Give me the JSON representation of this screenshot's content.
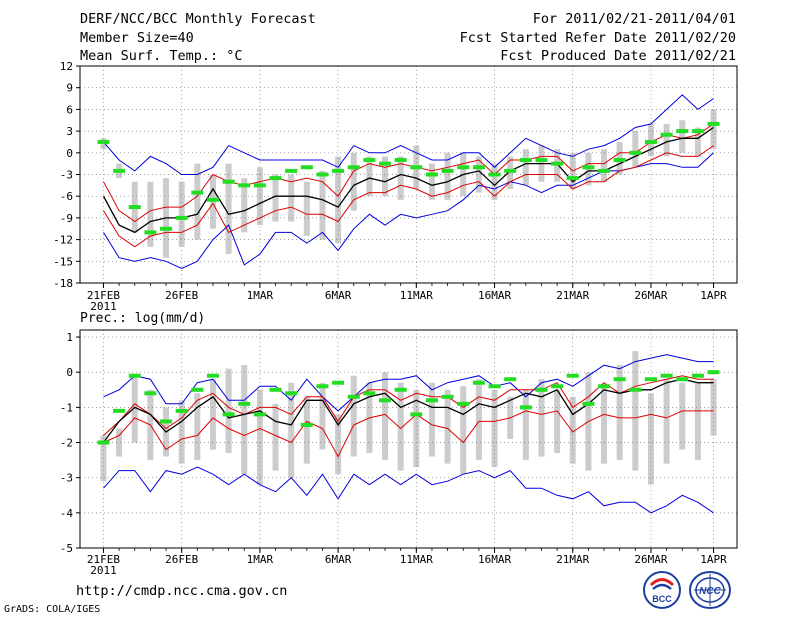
{
  "header": {
    "title": "DERF/NCC/BCC Monthly Forecast",
    "member_size": "Member Size=40",
    "variable": "Mean Surf. Temp.: °C",
    "period": "For 2011/02/21-2011/04/01",
    "fcst_started": "Fcst Started Refer Date 2011/02/20",
    "fcst_produced": "Fcst Produced Date 2011/02/21"
  },
  "footer": {
    "url": "http://cmdp.ncc.cma.gov.cn",
    "credit": "GrADS: COLA/IGES"
  },
  "logos": {
    "bcc": "BCC",
    "ncc": "NCC"
  },
  "colors": {
    "mean": "#000000",
    "spread": "#dd0000",
    "extreme": "#0000dd",
    "observed": "#22dd22",
    "box": "#cccccc",
    "grid": "#808080"
  },
  "x_labels": [
    "21FEB",
    "26FEB",
    "1MAR",
    "6MAR",
    "11MAR",
    "16MAR",
    "21MAR",
    "26MAR",
    "1APR"
  ],
  "x_label_year": "2011",
  "chart_data": [
    {
      "type": "line",
      "title": "Mean Surf. Temp.: °C",
      "xlabel": "",
      "ylabel": "",
      "ylim": [
        -18,
        12
      ],
      "yticks": [
        "12",
        "9",
        "6",
        "3",
        "0",
        "-3",
        "-6",
        "-9",
        "-12",
        "-15",
        "-18"
      ],
      "days": 40,
      "series": [
        {
          "name": "max",
          "values": [
            -11,
            -14.5,
            -15,
            -14.5,
            -15,
            -16,
            -15,
            -12,
            -10,
            -15.5,
            -14,
            -11,
            -11,
            -12.5,
            -11,
            -13.5,
            -10.5,
            -8.5,
            -10,
            -8.5,
            -9,
            -8.5,
            -8,
            -6.5,
            -4.5,
            -5,
            -4,
            -4.5,
            -5.5,
            -4.5,
            -4.5,
            -3.5,
            -2.5,
            -2.5,
            -2,
            -1.5,
            -1.5,
            -2,
            -2,
            0
          ]
        },
        {
          "name": "upper",
          "values": [
            -4,
            -8,
            -9.5,
            -8,
            -7.5,
            -7.5,
            -6,
            -3,
            -4,
            -4.5,
            -4,
            -3.5,
            -4,
            -3.5,
            -4,
            -6,
            -2.5,
            -1.5,
            -2,
            -1.5,
            -2,
            -2.5,
            -2,
            -1.5,
            -1,
            -3,
            -1,
            -1,
            -0.5,
            -0.5,
            -2.5,
            -1.5,
            -1.5,
            0,
            0,
            1.5,
            2.5,
            2,
            2.5,
            4
          ]
        },
        {
          "name": "mean",
          "values": [
            -6,
            -10,
            -11,
            -9.5,
            -9,
            -9,
            -8.5,
            -5,
            -8.5,
            -8,
            -7,
            -6,
            -6,
            -6,
            -6.5,
            -7.5,
            -4.5,
            -3.5,
            -4,
            -3,
            -3.5,
            -4.5,
            -4,
            -3,
            -2.5,
            -4.5,
            -2.5,
            -1.5,
            -1.5,
            -1.5,
            -4,
            -2.5,
            -2.5,
            -1.5,
            -0.5,
            0.5,
            1.5,
            2,
            2,
            3.5
          ]
        },
        {
          "name": "lower",
          "values": [
            -8,
            -11.5,
            -13,
            -11.5,
            -11,
            -11,
            -10,
            -7,
            -11,
            -10,
            -9,
            -8,
            -7.5,
            -8.5,
            -8.5,
            -9.5,
            -6.5,
            -5.5,
            -5.5,
            -4.5,
            -5,
            -6,
            -5.5,
            -4.5,
            -4,
            -6,
            -4,
            -3,
            -3,
            -3,
            -5,
            -4,
            -4,
            -2.5,
            -2,
            -1,
            0,
            -0.5,
            -0.5,
            1
          ]
        },
        {
          "name": "min",
          "values": [
            1.5,
            -1,
            -2.5,
            -0.5,
            -1.5,
            -3,
            -3,
            -2,
            1,
            0,
            -1,
            -1,
            -1,
            -1,
            -1,
            -2,
            1,
            0,
            0,
            1,
            0,
            -1,
            -1,
            0,
            0,
            -2,
            0,
            2,
            1,
            0,
            -0.5,
            0.5,
            1,
            2,
            3.5,
            4,
            6,
            8,
            6,
            7.5
          ]
        },
        {
          "name": "observed",
          "values": [
            1.5,
            -2.5,
            -7.5,
            -11,
            -10.5,
            -9,
            -5.5,
            -6.5,
            -4,
            -4.5,
            -4.5,
            -3.5,
            -2.5,
            -2,
            -3,
            -2.5,
            -2,
            -1,
            -1.5,
            -1,
            -2,
            -3,
            -2.5,
            -2,
            -2,
            -3,
            -2.5,
            -1,
            -1,
            -1.5,
            -3.5,
            -2,
            -2.5,
            -1,
            0,
            1.5,
            2.5,
            3,
            3,
            4
          ]
        },
        {
          "name": "box_high",
          "values": [
            2,
            -1.5,
            -4,
            -4,
            -3.5,
            -4,
            -1.5,
            -3,
            -1.5,
            -3.5,
            -2,
            -3,
            -3,
            -4,
            -2.5,
            -0.5,
            0,
            -0.5,
            -0.5,
            -0.5,
            1,
            -1.5,
            0,
            0,
            -0.5,
            -1.5,
            -0.5,
            0.5,
            1,
            0.5,
            0,
            0,
            0.5,
            1.5,
            3,
            4,
            4,
            4.5,
            3.5,
            6
          ]
        },
        {
          "name": "box_low",
          "values": [
            0.5,
            -3.5,
            -11,
            -13,
            -14.5,
            -13,
            -12,
            -10.5,
            -14,
            -11,
            -10,
            -9.5,
            -9.5,
            -11.5,
            -12,
            -12.5,
            -8,
            -6,
            -6,
            -6.5,
            -5,
            -6.5,
            -6.5,
            -6,
            -5.5,
            -6.5,
            -5,
            -4.5,
            -4,
            -4,
            -5,
            -4.5,
            -4,
            -3,
            -2,
            -0.5,
            -0.5,
            0,
            -0.5,
            0.5
          ]
        }
      ]
    },
    {
      "type": "line",
      "title": "Prec.: log(mm/d)",
      "xlabel": "",
      "ylabel": "",
      "ylim": [
        -5,
        1.2
      ],
      "yticks": [
        "1",
        "0",
        "-1",
        "-2",
        "-3",
        "-4",
        "-5"
      ],
      "days": 40,
      "series": [
        {
          "name": "max",
          "values": [
            -0.7,
            -0.5,
            -0.1,
            -0.2,
            -0.9,
            -0.9,
            -0.3,
            -0.2,
            -0.8,
            -0.8,
            -0.4,
            -0.4,
            -0.8,
            -0.2,
            -0.7,
            -1.1,
            -0.7,
            -0.3,
            -0.2,
            -0.2,
            -0.1,
            -0.5,
            -0.3,
            -0.2,
            -0.1,
            -0.4,
            -0.3,
            -0.7,
            -0.3,
            -0.2,
            -0.4,
            -0.1,
            0.2,
            0.1,
            0.3,
            0.4,
            0.5,
            0.4,
            0.3,
            0.3
          ]
        },
        {
          "name": "upper",
          "values": [
            -1.8,
            -1.4,
            -0.9,
            -1.2,
            -1.6,
            -1.3,
            -0.8,
            -0.6,
            -1,
            -1.2,
            -1,
            -1,
            -1.2,
            -0.7,
            -0.7,
            -1.4,
            -0.7,
            -0.5,
            -0.5,
            -0.8,
            -0.6,
            -0.7,
            -0.7,
            -1,
            -0.7,
            -0.8,
            -0.5,
            -0.5,
            -0.5,
            -0.3,
            -1,
            -0.7,
            -0.3,
            -0.6,
            -0.4,
            -0.3,
            -0.2,
            -0.1,
            -0.2,
            -0.2
          ]
        },
        {
          "name": "mean",
          "values": [
            -2,
            -1.4,
            -1,
            -1.2,
            -1.7,
            -1.4,
            -1,
            -0.7,
            -1.3,
            -1.2,
            -1.1,
            -1.4,
            -1.5,
            -0.8,
            -0.8,
            -1.5,
            -0.9,
            -0.7,
            -0.6,
            -1,
            -0.8,
            -1,
            -1,
            -1.2,
            -0.9,
            -1,
            -0.8,
            -0.6,
            -0.7,
            -0.5,
            -1.2,
            -0.9,
            -0.5,
            -0.6,
            -0.5,
            -0.5,
            -0.3,
            -0.2,
            -0.3,
            -0.3
          ]
        },
        {
          "name": "lower",
          "values": [
            -2,
            -1.8,
            -1.3,
            -1.5,
            -2.2,
            -1.9,
            -1.8,
            -1.3,
            -1.6,
            -1.8,
            -1.6,
            -1.8,
            -2,
            -1.4,
            -1.6,
            -2.4,
            -1.5,
            -1.3,
            -1.2,
            -1.6,
            -1.2,
            -1.5,
            -1.6,
            -2,
            -1.4,
            -1.4,
            -1.3,
            -1.1,
            -1.2,
            -1.1,
            -1.7,
            -1.4,
            -1.2,
            -1.3,
            -1.3,
            -1.2,
            -1.3,
            -1.1,
            -1.1,
            -1.1
          ]
        },
        {
          "name": "min",
          "values": [
            -3.3,
            -2.8,
            -2.8,
            -3.4,
            -2.8,
            -2.9,
            -2.7,
            -2.9,
            -3.2,
            -2.9,
            -3.2,
            -3.4,
            -3,
            -3.5,
            -2.9,
            -3.6,
            -2.9,
            -3.2,
            -2.9,
            -3.2,
            -2.9,
            -3.2,
            -3.1,
            -2.9,
            -2.8,
            -3,
            -2.8,
            -3.3,
            -3.3,
            -3.5,
            -3.6,
            -3.4,
            -3.8,
            -3.7,
            -3.7,
            -4,
            -3.8,
            -3.5,
            -3.7,
            -4
          ]
        },
        {
          "name": "observed",
          "values": [
            -2,
            -1.1,
            -0.1,
            -0.6,
            -1.4,
            -1.1,
            -0.5,
            -0.1,
            -1.2,
            -0.9,
            -1.2,
            -0.5,
            -0.6,
            -1.5,
            -0.4,
            -0.3,
            -0.7,
            -0.6,
            -0.8,
            -0.5,
            -1.2,
            -0.8,
            -0.7,
            -0.9,
            -0.3,
            -0.4,
            -0.2,
            -1,
            -0.5,
            -0.4,
            -0.1,
            -0.9,
            -0.4,
            -0.2,
            -0.5,
            -0.2,
            -0.1,
            -0.2,
            -0.1,
            0
          ]
        },
        {
          "name": "box_high",
          "values": [
            -1.8,
            -1.6,
            -0.1,
            -0.5,
            -1,
            -0.8,
            -0.6,
            -0.2,
            0.1,
            0.2,
            -0.5,
            -0.9,
            -0.3,
            -0.7,
            -0.3,
            -1.2,
            -0.1,
            -0.3,
            0,
            -0.3,
            -0.5,
            -0.3,
            -0.5,
            -0.4,
            -0.2,
            -0.5,
            -0.7,
            -0.5,
            -0.2,
            -0.5,
            -0.7,
            0,
            -0.4,
            0.2,
            0.6,
            -0.6,
            -0.2,
            -0.3,
            -0.3,
            -0.2
          ]
        },
        {
          "name": "box_low",
          "values": [
            -3.1,
            -2.4,
            -2,
            -2.5,
            -2.4,
            -2.6,
            -2.5,
            -2.2,
            -2.3,
            -2.9,
            -3.2,
            -2.8,
            -3,
            -2.6,
            -2.2,
            -2.9,
            -2.4,
            -2.3,
            -2.5,
            -2.8,
            -2.7,
            -2.4,
            -2.6,
            -2.9,
            -2.5,
            -2.7,
            -1.9,
            -2.5,
            -2.4,
            -2.3,
            -2.6,
            -2.8,
            -2.6,
            -2.5,
            -2.8,
            -3.2,
            -2.6,
            -2.2,
            -2.5,
            -1.8
          ]
        }
      ]
    }
  ]
}
